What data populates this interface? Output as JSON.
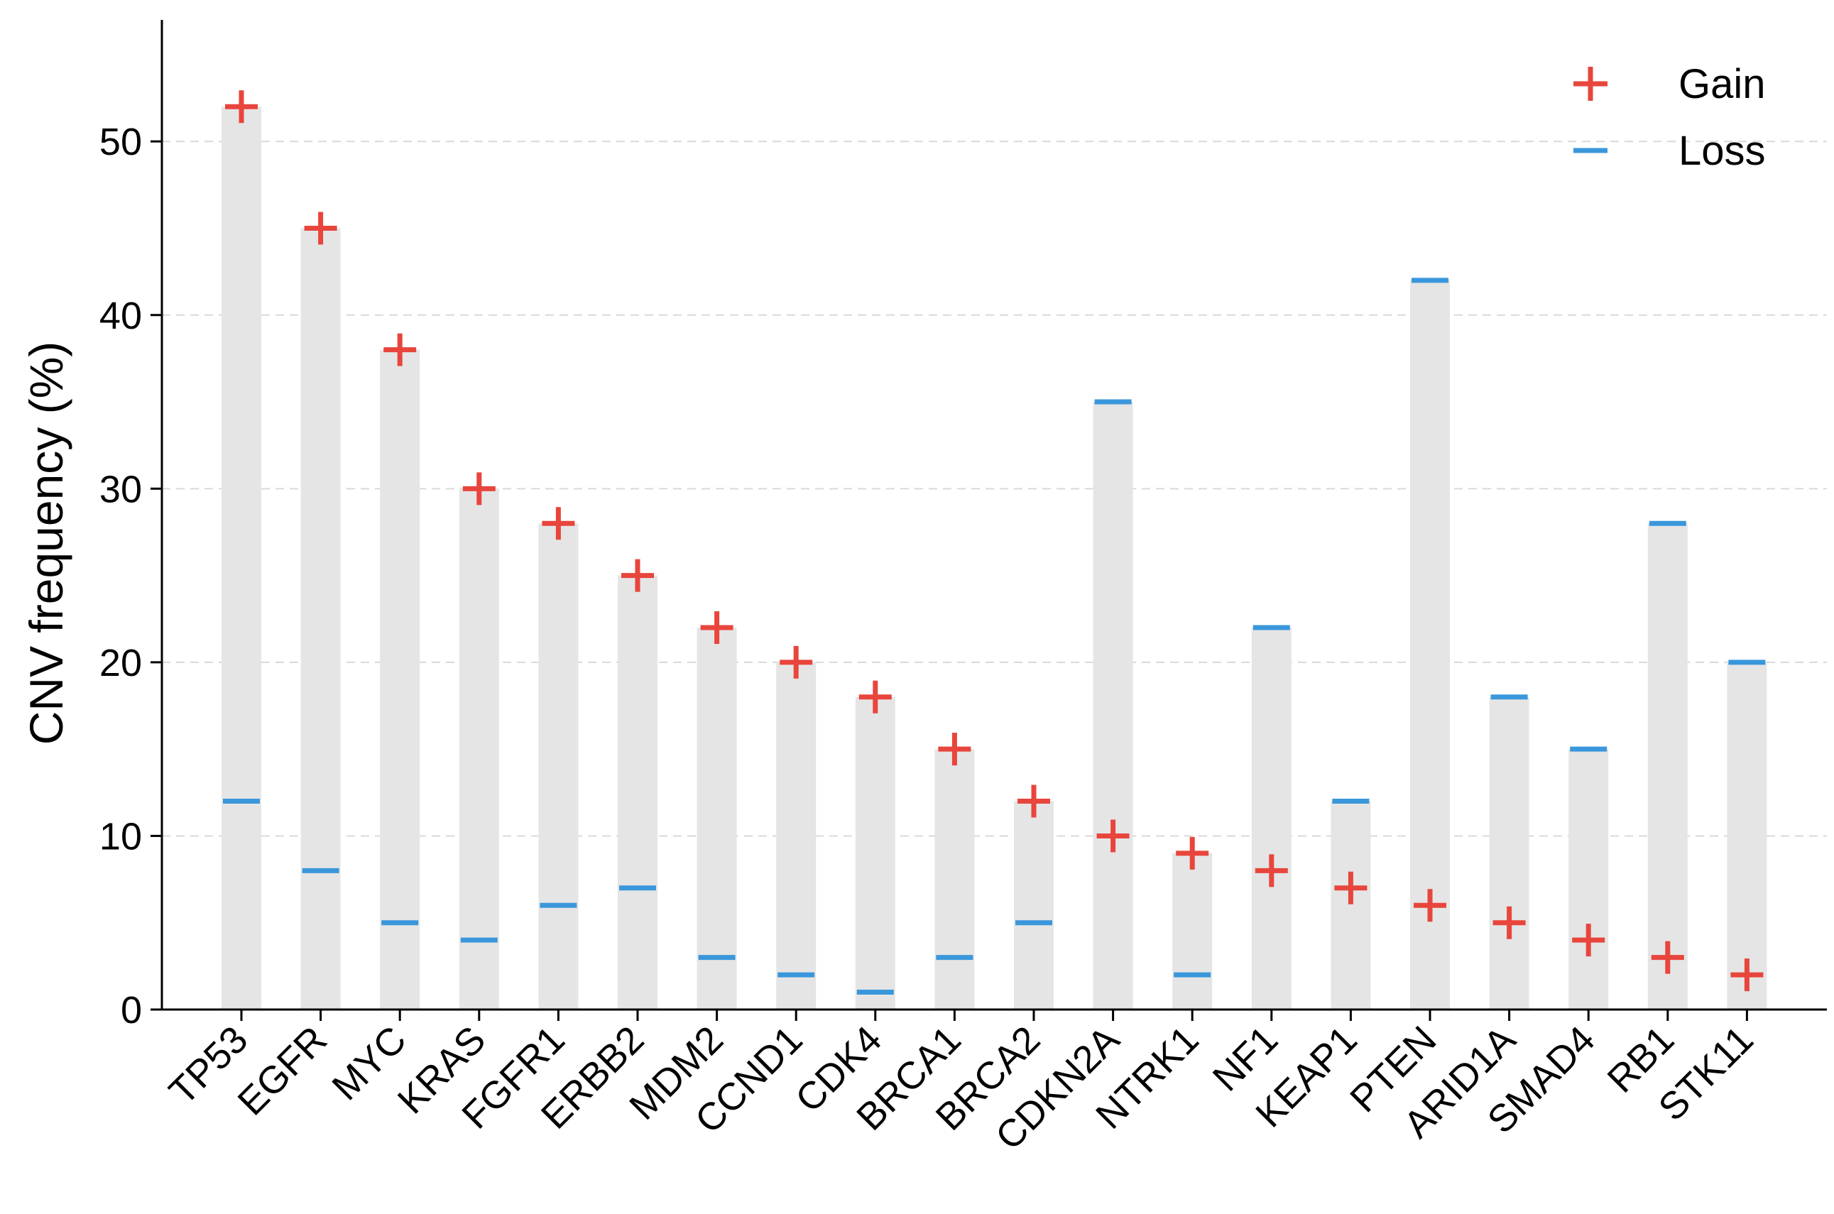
{
  "chart_data": {
    "type": "bar",
    "ylabel": "CNV frequency (%)",
    "xlabel": "",
    "ylim": [
      0,
      57
    ],
    "yticks": [
      0,
      10,
      20,
      30,
      40,
      50
    ],
    "grid": "horizontal-dashed",
    "legend_position": "top-right",
    "categories": [
      "TP53",
      "EGFR",
      "MYC",
      "KRAS",
      "FGFR1",
      "ERBB2",
      "MDM2",
      "CCND1",
      "CDK4",
      "BRCA1",
      "BRCA2",
      "CDKN2A",
      "NTRK1",
      "NF1",
      "KEAP1",
      "PTEN",
      "ARID1A",
      "SMAD4",
      "RB1",
      "STK11"
    ],
    "series": [
      {
        "name": "Gain",
        "marker": "plus",
        "color": "#e8453c",
        "values": [
          52,
          45,
          38,
          30,
          28,
          25,
          22,
          20,
          18,
          15,
          12,
          10,
          9,
          8,
          7,
          6,
          5,
          4,
          3,
          2
        ]
      },
      {
        "name": "Loss",
        "marker": "dash",
        "color": "#3a97db",
        "values": [
          12,
          8,
          5,
          4,
          6,
          7,
          3,
          2,
          1,
          3,
          5,
          35,
          2,
          22,
          12,
          42,
          18,
          15,
          28,
          20
        ]
      }
    ],
    "bar_color": "#e5e5e5"
  }
}
